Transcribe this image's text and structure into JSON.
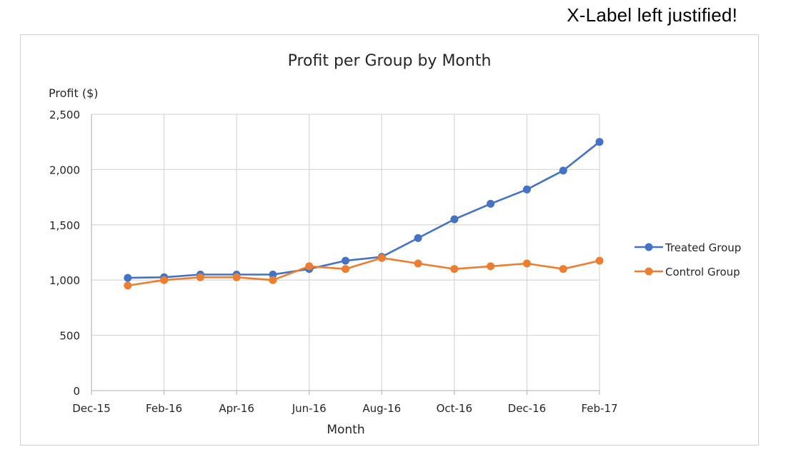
{
  "page": {
    "note": "X-Label left justified!"
  },
  "chart_data": {
    "type": "line",
    "title": "Profit per Group by Month",
    "xlabel": "Month",
    "ylabel": "Profit ($)",
    "x_ticks": [
      "Dec-15",
      "Feb-16",
      "Apr-16",
      "Jun-16",
      "Aug-16",
      "Oct-16",
      "Dec-16",
      "Feb-17"
    ],
    "y_ticks": [
      "0",
      "500",
      "1,000",
      "1,500",
      "2,000",
      "2,500"
    ],
    "ylim": [
      0,
      2500
    ],
    "x": [
      "Jan-16",
      "Feb-16",
      "Mar-16",
      "Apr-16",
      "May-16",
      "Jun-16",
      "Jul-16",
      "Aug-16",
      "Sep-16",
      "Oct-16",
      "Nov-16",
      "Dec-16",
      "Jan-17",
      "Feb-17"
    ],
    "grid": true,
    "legend_position": "right",
    "series": [
      {
        "name": "Treated Group",
        "color": "#4472C4",
        "values": [
          1020,
          1025,
          1050,
          1050,
          1050,
          1100,
          1175,
          1210,
          1380,
          1550,
          1690,
          1820,
          1990,
          2250
        ]
      },
      {
        "name": "Control Group",
        "color": "#ED7D31",
        "values": [
          950,
          1000,
          1025,
          1025,
          1000,
          1125,
          1100,
          1200,
          1150,
          1100,
          1125,
          1150,
          1100,
          1175
        ]
      }
    ]
  }
}
